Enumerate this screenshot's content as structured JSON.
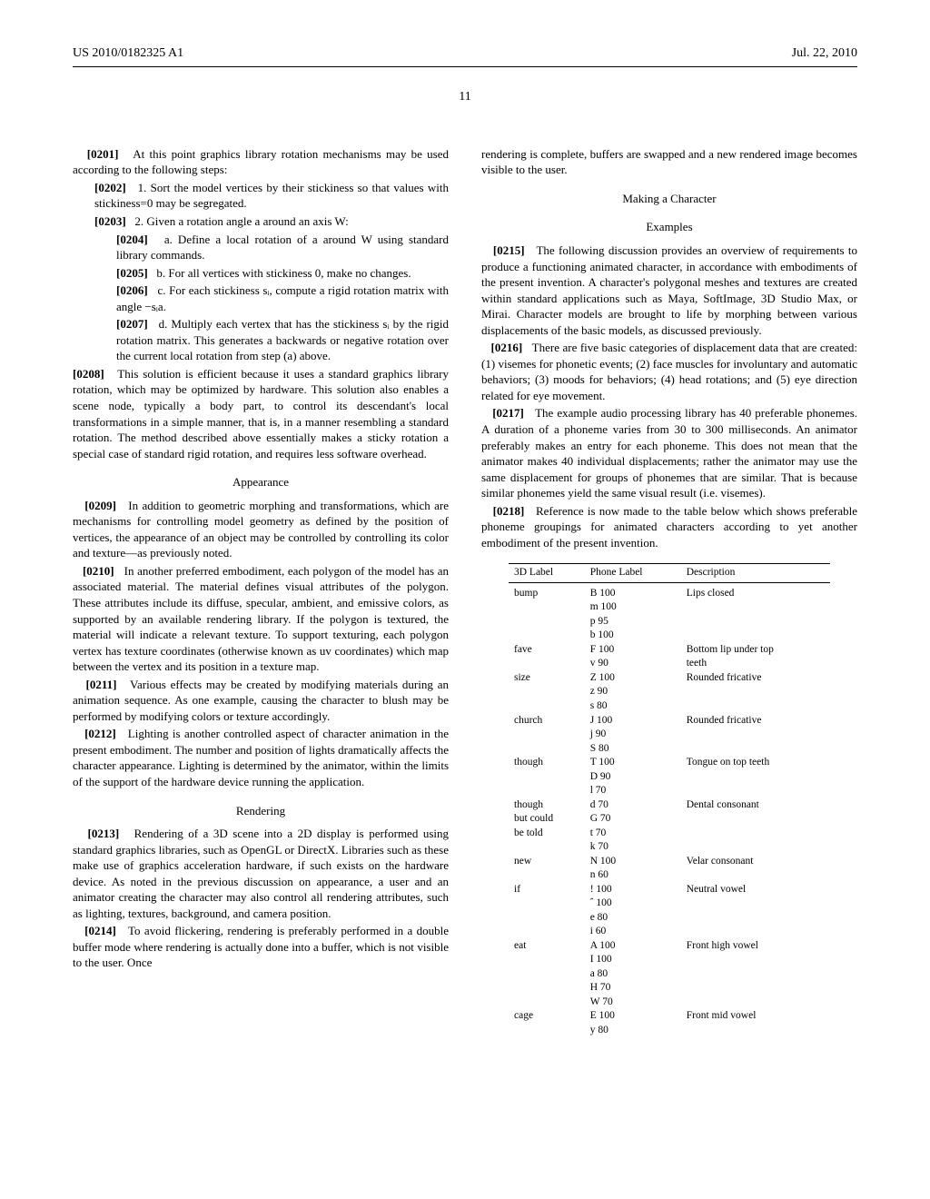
{
  "header": {
    "left": "US 2010/0182325 A1",
    "right": "Jul. 22, 2010"
  },
  "page_num": "11",
  "left_col": {
    "p0201": "At this point graphics library rotation mechanisms may be used according to the following steps:",
    "p0202": "1. Sort the model vertices by their stickiness so that values with stickiness=0 may be segregated.",
    "p0203": "2. Given a rotation angle a around an axis W:",
    "p0204": "a. Define a local rotation of a around W using standard library commands.",
    "p0205": "b. For all vertices with stickiness 0, make no changes.",
    "p0206": "c. For each stickiness sᵢ, compute a rigid rotation matrix with angle −sᵢa.",
    "p0207": "d. Multiply each vertex that has the stickiness sᵢ by the rigid rotation matrix. This generates a backwards or negative rotation over the current local rotation from step (a) above.",
    "p0208": "This solution is efficient because it uses a standard graphics library rotation, which may be optimized by hardware. This solution also enables a scene node, typically a body part, to control its descendant's local transformations in a simple manner, that is, in a manner resembling a standard rotation. The method described above essentially makes a sticky rotation a special case of standard rigid rotation, and requires less software overhead.",
    "sec_appearance": "Appearance",
    "p0209": "In addition to geometric morphing and transformations, which are mechanisms for controlling model geometry as defined by the position of vertices, the appearance of an object may be controlled by controlling its color and texture—as previously noted.",
    "p0210": "In another preferred embodiment, each polygon of the model has an associated material. The material defines visual attributes of the polygon. These attributes include its diffuse, specular, ambient, and emissive colors, as supported by an available rendering library. If the polygon is textured, the material will indicate a relevant texture. To support texturing, each polygon vertex has texture coordinates (otherwise known as uv coordinates) which map between the vertex and its position in a texture map.",
    "p0211": "Various effects may be created by modifying materials during an animation sequence. As one example, causing the character to blush may be performed by modifying colors or texture accordingly.",
    "p0212": "Lighting is another controlled aspect of character animation in the present embodiment. The number and position of lights dramatically affects the character appearance. Lighting is determined by the animator, within the limits of the support of the hardware device running the application.",
    "sec_rendering": "Rendering",
    "p0213": "Rendering of a 3D scene into a 2D display is performed using standard graphics libraries, such as OpenGL or DirectX. Libraries such as these make use of graphics acceleration hardware, if such exists on the hardware device. As noted in the previous discussion on appearance, a user and an animator creating the character may also control all rendering attributes, such as lighting, textures, background, and camera position.",
    "p0214": "To avoid flickering, rendering is preferably performed in a double buffer mode where rendering is actually done into a buffer, which is not visible to the user. Once"
  },
  "right_col": {
    "cont": "rendering is complete, buffers are swapped and a new rendered image becomes visible to the user.",
    "sec_making": "Making a Character",
    "sec_examples": "Examples",
    "p0215": "The following discussion provides an overview of requirements to produce a functioning animated character, in accordance with embodiments of the present invention. A character's polygonal meshes and textures are created within standard applications such as Maya, SoftImage, 3D Studio Max, or Mirai. Character models are brought to life by morphing between various displacements of the basic models, as discussed previously.",
    "p0216": "There are five basic categories of displacement data that are created: (1) visemes for phonetic events; (2) face muscles for involuntary and automatic behaviors; (3) moods for behaviors; (4) head rotations; and (5) eye direction related for eye movement.",
    "p0217": "The example audio processing library has 40 preferable phonemes. A duration of a phoneme varies from 30 to 300 milliseconds. An animator preferably makes an entry for each phoneme. This does not mean that the animator makes 40 individual displacements; rather the animator may use the same displacement for groups of phonemes that are similar. That is because similar phonemes yield the same visual result (i.e. visemes).",
    "p0218": "Reference is now made to the table below which shows preferable phoneme groupings for animated characters according to yet another embodiment of the present invention."
  },
  "table": {
    "headers": [
      "3D Label",
      "Phone Label",
      "Description"
    ],
    "rows": [
      [
        "bump",
        "B 100",
        "Lips closed"
      ],
      [
        "",
        "m 100",
        ""
      ],
      [
        "",
        "p 95",
        ""
      ],
      [
        "",
        "b 100",
        ""
      ],
      [
        "fave",
        "F 100",
        "Bottom lip under top"
      ],
      [
        "",
        "v 90",
        "teeth"
      ],
      [
        "size",
        "Z 100",
        "Rounded fricative"
      ],
      [
        "",
        "z 90",
        ""
      ],
      [
        "",
        "s 80",
        ""
      ],
      [
        "church",
        "J 100",
        "Rounded fricative"
      ],
      [
        "",
        "j 90",
        ""
      ],
      [
        "",
        "S 80",
        ""
      ],
      [
        "though",
        "T 100",
        "Tongue on top teeth"
      ],
      [
        "",
        "D 90",
        ""
      ],
      [
        "",
        "l 70",
        ""
      ],
      [
        "though",
        "d 70",
        "Dental consonant"
      ],
      [
        "but could",
        "G 70",
        ""
      ],
      [
        "be told",
        "t 70",
        ""
      ],
      [
        "",
        "k 70",
        ""
      ],
      [
        "new",
        "N 100",
        "Velar consonant"
      ],
      [
        "",
        "n 60",
        ""
      ],
      [
        "if",
        "! 100",
        "Neutral vowel"
      ],
      [
        "",
        "ˆ 100",
        ""
      ],
      [
        "",
        "e 80",
        ""
      ],
      [
        "",
        "i 60",
        ""
      ],
      [
        "eat",
        "A 100",
        "Front high vowel"
      ],
      [
        "",
        "I 100",
        ""
      ],
      [
        "",
        "a 80",
        ""
      ],
      [
        "",
        "H 70",
        ""
      ],
      [
        "",
        "W 70",
        ""
      ],
      [
        "cage",
        "E 100",
        "Front mid vowel"
      ],
      [
        "",
        "y 80",
        ""
      ]
    ]
  }
}
